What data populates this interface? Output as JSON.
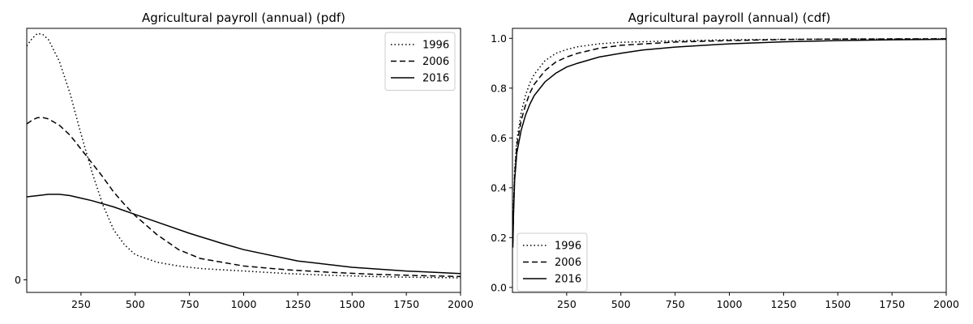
{
  "chart_data": [
    {
      "type": "line",
      "title": "Agricultural payroll (annual) (pdf)",
      "xlabel": "",
      "ylabel": "",
      "xlim": [
        0,
        2000
      ],
      "ylim": [
        -0.05,
        1.0
      ],
      "x_ticks": [
        250,
        500,
        750,
        1000,
        1250,
        1500,
        1750,
        2000
      ],
      "x_tick_labels": [
        "250",
        "500",
        "750",
        "1000",
        "1250",
        "1500",
        "1750",
        "2000"
      ],
      "y_ticks": [
        0
      ],
      "y_tick_labels": [
        "0"
      ],
      "grid": false,
      "legend_position": "top-right",
      "series": [
        {
          "name": "1996",
          "line_style": "dotted",
          "color": "#000000",
          "points": [
            [
              0,
              0.93
            ],
            [
              25,
              0.96
            ],
            [
              50,
              0.98
            ],
            [
              75,
              0.975
            ],
            [
              100,
              0.955
            ],
            [
              150,
              0.87
            ],
            [
              200,
              0.74
            ],
            [
              250,
              0.58
            ],
            [
              300,
              0.43
            ],
            [
              350,
              0.3
            ],
            [
              400,
              0.2
            ],
            [
              450,
              0.14
            ],
            [
              500,
              0.1
            ],
            [
              600,
              0.07
            ],
            [
              700,
              0.055
            ],
            [
              800,
              0.045
            ],
            [
              1000,
              0.035
            ],
            [
              1200,
              0.025
            ],
            [
              1400,
              0.018
            ],
            [
              1600,
              0.013
            ],
            [
              1800,
              0.01
            ],
            [
              2000,
              0.008
            ]
          ]
        },
        {
          "name": "2006",
          "line_style": "dashed",
          "color": "#000000",
          "points": [
            [
              0,
              0.62
            ],
            [
              25,
              0.635
            ],
            [
              50,
              0.645
            ],
            [
              75,
              0.645
            ],
            [
              100,
              0.64
            ],
            [
              150,
              0.615
            ],
            [
              200,
              0.575
            ],
            [
              250,
              0.52
            ],
            [
              300,
              0.465
            ],
            [
              350,
              0.41
            ],
            [
              400,
              0.35
            ],
            [
              450,
              0.3
            ],
            [
              500,
              0.255
            ],
            [
              600,
              0.18
            ],
            [
              700,
              0.12
            ],
            [
              800,
              0.085
            ],
            [
              1000,
              0.055
            ],
            [
              1200,
              0.04
            ],
            [
              1400,
              0.03
            ],
            [
              1600,
              0.022
            ],
            [
              1800,
              0.017
            ],
            [
              2000,
              0.013
            ]
          ]
        },
        {
          "name": "2016",
          "line_style": "solid",
          "color": "#000000",
          "points": [
            [
              0,
              0.33
            ],
            [
              50,
              0.335
            ],
            [
              100,
              0.34
            ],
            [
              150,
              0.34
            ],
            [
              200,
              0.335
            ],
            [
              250,
              0.325
            ],
            [
              300,
              0.315
            ],
            [
              400,
              0.29
            ],
            [
              500,
              0.26
            ],
            [
              600,
              0.23
            ],
            [
              750,
              0.185
            ],
            [
              900,
              0.145
            ],
            [
              1000,
              0.12
            ],
            [
              1250,
              0.075
            ],
            [
              1500,
              0.05
            ],
            [
              1750,
              0.035
            ],
            [
              2000,
              0.025
            ]
          ]
        }
      ]
    },
    {
      "type": "line",
      "title": "Agricultural payroll (annual) (cdf)",
      "xlabel": "",
      "ylabel": "",
      "xlim": [
        0,
        2000
      ],
      "ylim": [
        -0.02,
        1.04
      ],
      "x_ticks": [
        250,
        500,
        750,
        1000,
        1250,
        1500,
        1750,
        2000
      ],
      "x_tick_labels": [
        "250",
        "500",
        "750",
        "1000",
        "1250",
        "1500",
        "1750",
        "2000"
      ],
      "y_ticks": [
        0.0,
        0.2,
        0.4,
        0.6,
        0.8,
        1.0
      ],
      "y_tick_labels": [
        "0.0",
        "0.2",
        "0.4",
        "0.6",
        "0.8",
        "1.0"
      ],
      "grid": false,
      "legend_position": "bottom-left",
      "series": [
        {
          "name": "1996",
          "line_style": "dotted",
          "color": "#000000",
          "points": [
            [
              2,
              0.2
            ],
            [
              5,
              0.33
            ],
            [
              10,
              0.47
            ],
            [
              20,
              0.59
            ],
            [
              40,
              0.7
            ],
            [
              60,
              0.77
            ],
            [
              80,
              0.82
            ],
            [
              100,
              0.855
            ],
            [
              150,
              0.91
            ],
            [
              200,
              0.94
            ],
            [
              250,
              0.955
            ],
            [
              300,
              0.966
            ],
            [
              400,
              0.978
            ],
            [
              500,
              0.984
            ],
            [
              750,
              0.99
            ],
            [
              1000,
              0.994
            ],
            [
              1250,
              0.996
            ],
            [
              1500,
              0.997
            ],
            [
              2000,
              0.998
            ]
          ]
        },
        {
          "name": "2006",
          "line_style": "dashed",
          "color": "#000000",
          "points": [
            [
              2,
              0.18
            ],
            [
              5,
              0.31
            ],
            [
              10,
              0.45
            ],
            [
              20,
              0.57
            ],
            [
              40,
              0.67
            ],
            [
              60,
              0.73
            ],
            [
              80,
              0.78
            ],
            [
              100,
              0.815
            ],
            [
              150,
              0.87
            ],
            [
              200,
              0.905
            ],
            [
              250,
              0.925
            ],
            [
              300,
              0.94
            ],
            [
              400,
              0.96
            ],
            [
              500,
              0.972
            ],
            [
              750,
              0.985
            ],
            [
              1000,
              0.991
            ],
            [
              1250,
              0.995
            ],
            [
              1500,
              0.997
            ],
            [
              2000,
              0.998
            ]
          ]
        },
        {
          "name": "2016",
          "line_style": "solid",
          "color": "#000000",
          "points": [
            [
              2,
              0.16
            ],
            [
              5,
              0.29
            ],
            [
              10,
              0.43
            ],
            [
              20,
              0.54
            ],
            [
              40,
              0.63
            ],
            [
              60,
              0.69
            ],
            [
              80,
              0.735
            ],
            [
              100,
              0.77
            ],
            [
              150,
              0.825
            ],
            [
              200,
              0.86
            ],
            [
              250,
              0.885
            ],
            [
              300,
              0.9
            ],
            [
              400,
              0.925
            ],
            [
              500,
              0.94
            ],
            [
              600,
              0.953
            ],
            [
              750,
              0.965
            ],
            [
              1000,
              0.978
            ],
            [
              1250,
              0.986
            ],
            [
              1500,
              0.991
            ],
            [
              1750,
              0.994
            ],
            [
              2000,
              0.996
            ]
          ]
        }
      ]
    }
  ]
}
